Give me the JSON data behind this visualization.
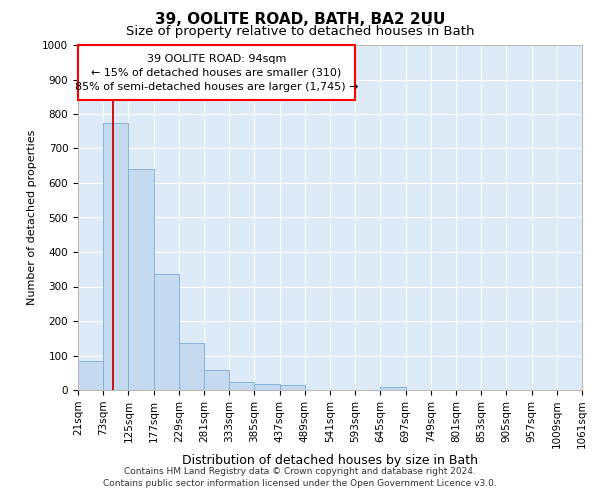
{
  "title1": "39, OOLITE ROAD, BATH, BA2 2UU",
  "title2": "Size of property relative to detached houses in Bath",
  "xlabel": "Distribution of detached houses by size in Bath",
  "ylabel": "Number of detached properties",
  "footer1": "Contains HM Land Registry data © Crown copyright and database right 2024.",
  "footer2": "Contains public sector information licensed under the Open Government Licence v3.0.",
  "annotation_title": "39 OOLITE ROAD: 94sqm",
  "annotation_line2": "← 15% of detached houses are smaller (310)",
  "annotation_line3": "85% of semi-detached houses are larger (1,745) →",
  "bar_color": "#c5d9ef",
  "bar_edge_color": "#7aaddb",
  "background_color": "#ddeaf7",
  "vline_color": "#cc0000",
  "vline_x": 2.0,
  "bins": [
    "21sqm",
    "73sqm",
    "125sqm",
    "177sqm",
    "229sqm",
    "281sqm",
    "333sqm",
    "385sqm",
    "437sqm",
    "489sqm",
    "541sqm",
    "593sqm",
    "645sqm",
    "697sqm",
    "749sqm",
    "801sqm",
    "853sqm",
    "905sqm",
    "957sqm",
    "1009sqm",
    "1061sqm"
  ],
  "bar_heights": [
    85,
    775,
    640,
    335,
    135,
    58,
    22,
    17,
    15,
    0,
    0,
    0,
    10,
    0,
    0,
    0,
    0,
    0,
    0,
    0
  ],
  "ylim": [
    0,
    1000
  ],
  "yticks": [
    0,
    100,
    200,
    300,
    400,
    500,
    600,
    700,
    800,
    900,
    1000
  ],
  "title1_fontsize": 11,
  "title2_fontsize": 9.5,
  "xlabel_fontsize": 9,
  "ylabel_fontsize": 8,
  "tick_fontsize": 7.5,
  "footer_fontsize": 6.5,
  "ann_fontsize": 8
}
